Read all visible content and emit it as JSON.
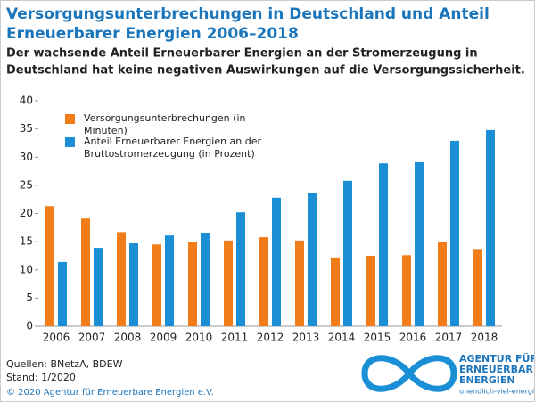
{
  "chart_data": {
    "type": "bar",
    "title": [
      "Versorgungsunterbrechungen in Deutschland und Anteil",
      "Erneuerbarer Energien 2006–2018"
    ],
    "subtitle": [
      "Der wachsende Anteil Erneuerbarer Energien an der Stromerzeugung in",
      "Deutschland hat keine negativen Auswirkungen auf die Versorgungssicherheit."
    ],
    "categories": [
      "2006",
      "2007",
      "2008",
      "2009",
      "2010",
      "2011",
      "2012",
      "2013",
      "2014",
      "2015",
      "2016",
      "2017",
      "2018"
    ],
    "series": [
      {
        "name": "Versorgungsunterbrechungen (in Minuten)",
        "color": "#f07d19",
        "values": [
          21.3,
          19.1,
          16.7,
          14.5,
          14.9,
          15.2,
          15.8,
          15.2,
          12.2,
          12.5,
          12.6,
          15.0,
          13.7
        ]
      },
      {
        "name": "Anteil Erneuerbarer Energien an der Bruttostromerzeugung (in Prozent)",
        "color": "#1a8fd6",
        "values": [
          11.4,
          13.9,
          14.7,
          16.1,
          16.6,
          20.2,
          22.8,
          23.7,
          25.8,
          28.9,
          29.1,
          32.9,
          34.8
        ]
      }
    ],
    "ylim": [
      0,
      40
    ],
    "yticks": [
      0,
      5,
      10,
      15,
      20,
      25,
      30,
      35,
      40
    ],
    "sources": "Quellen:  BNetzA, BDEW",
    "status": "Stand: 1/2020",
    "copyright": "© 2020 Agentur für Erneuerbare Energien e.V.",
    "logo": [
      "AGENTUR FÜR",
      "ERNEUERBARE",
      "ENERGIEN",
      "unendlich-viel-energie.de"
    ]
  }
}
